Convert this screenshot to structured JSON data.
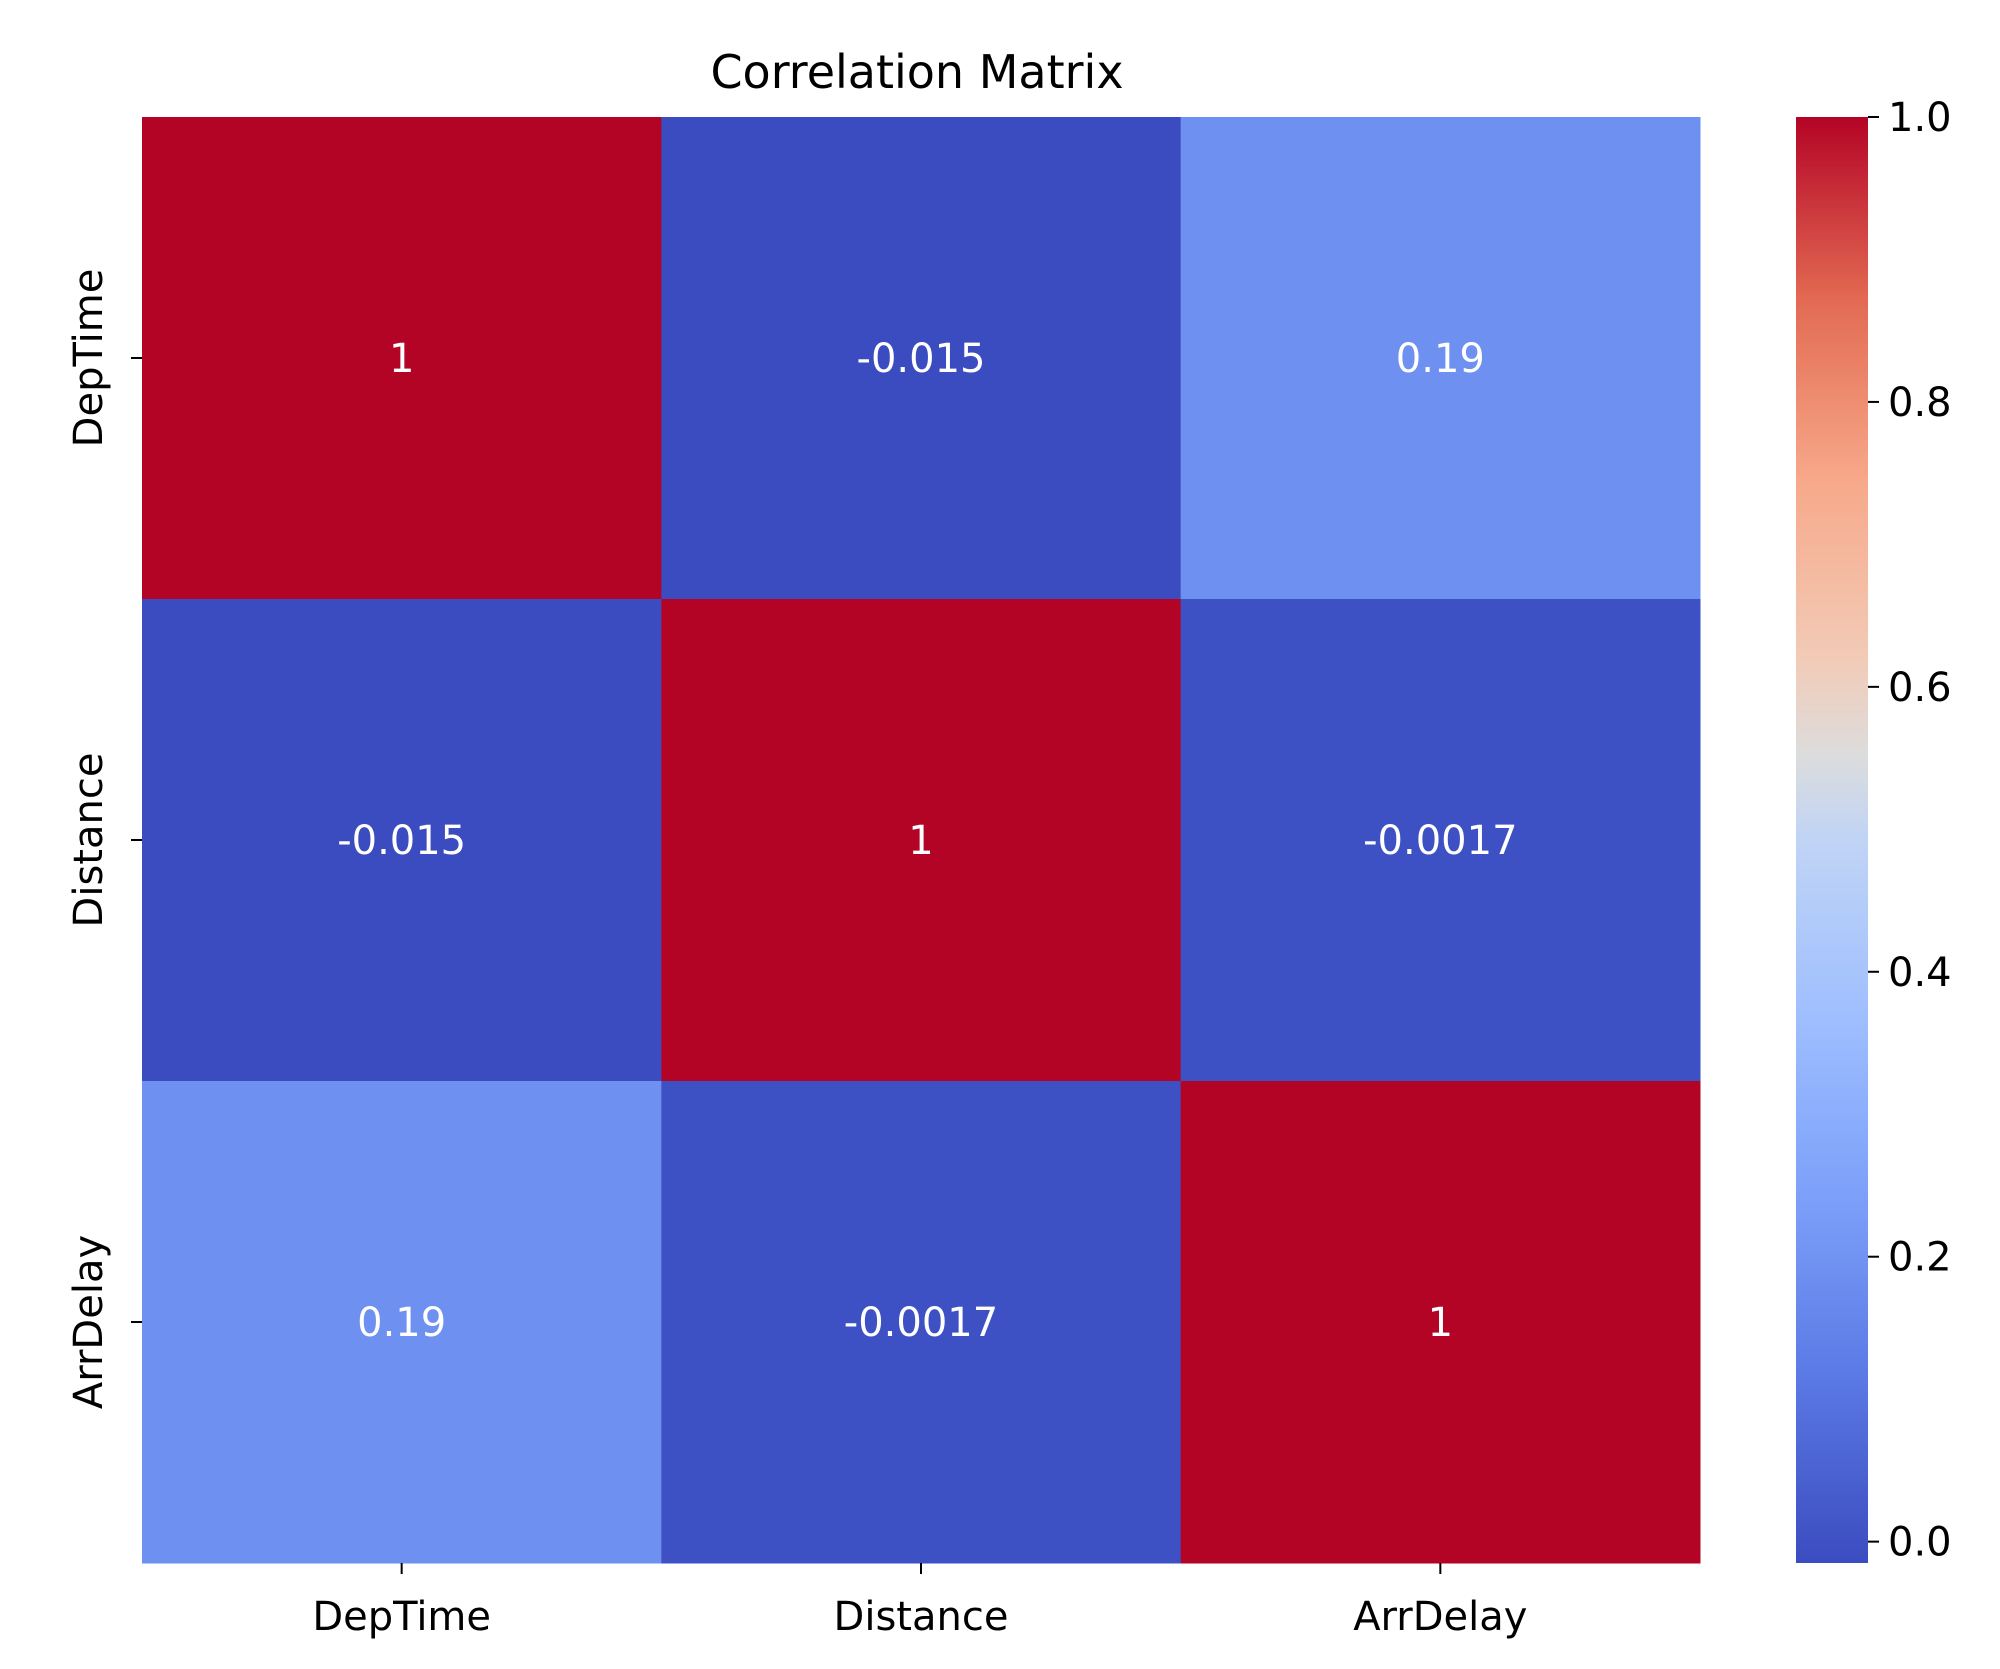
{
  "chart_data": {
    "type": "heatmap",
    "title": "Correlation Matrix",
    "xlabel": "",
    "ylabel": "",
    "x_categories": [
      "DepTime",
      "Distance",
      "ArrDelay"
    ],
    "y_categories": [
      "DepTime",
      "Distance",
      "ArrDelay"
    ],
    "values": [
      [
        1,
        -0.015,
        0.19
      ],
      [
        -0.015,
        1,
        -0.0017
      ],
      [
        0.19,
        -0.0017,
        1
      ]
    ],
    "annotations": [
      [
        "1",
        "-0.015",
        "0.19"
      ],
      [
        "-0.015",
        "1",
        "-0.0017"
      ],
      [
        "0.19",
        "-0.0017",
        "1"
      ]
    ],
    "colormap": "coolwarm",
    "colorbar": {
      "min": -0.015,
      "max": 1.0,
      "ticks": [
        0.0,
        0.2,
        0.4,
        0.6,
        0.8,
        1.0
      ],
      "tick_labels": [
        "0.0",
        "0.2",
        "0.4",
        "0.6",
        "0.8",
        "1.0"
      ]
    },
    "grid": false,
    "legend": "colorbar-right"
  }
}
